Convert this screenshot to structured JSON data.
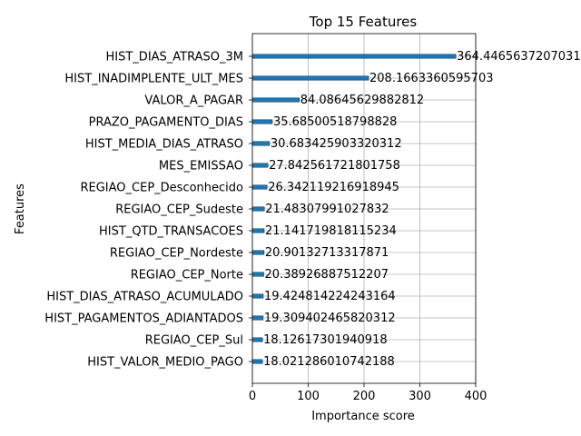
{
  "chart_data": {
    "type": "bar",
    "orientation": "horizontal",
    "title": "Top 15 Features",
    "xlabel": "Importance score",
    "ylabel": "Features",
    "xlim": [
      0,
      400
    ],
    "xticks": [
      0,
      100,
      200,
      300,
      400
    ],
    "grid": true,
    "bar_color": "#1f77b4",
    "categories": [
      "HIST_DIAS_ATRASO_3M",
      "HIST_INADIMPLENTE_ULT_MES",
      "VALOR_A_PAGAR",
      "PRAZO_PAGAMENTO_DIAS",
      "HIST_MEDIA_DIAS_ATRASO",
      "MES_EMISSAO",
      "REGIAO_CEP_Desconhecido",
      "REGIAO_CEP_Sudeste",
      "HIST_QTD_TRANSACOES",
      "REGIAO_CEP_Nordeste",
      "REGIAO_CEP_Norte",
      "HIST_DIAS_ATRASO_ACUMULADO",
      "HIST_PAGAMENTOS_ADIANTADOS",
      "REGIAO_CEP_Sul",
      "HIST_VALOR_MEDIO_PAGO"
    ],
    "values": [
      364.4465637207031,
      208.1663360595703,
      84.08645629882812,
      35.68500518798828,
      30.683425903320312,
      27.842561721801758,
      26.342119216918945,
      21.48307991027832,
      21.141719818115234,
      20.90132713317871,
      20.38926887512207,
      19.424814224243164,
      19.309402465820312,
      18.12617301940918,
      18.021286010742188
    ],
    "value_labels": [
      "364.4465637207031",
      "208.1663360595703",
      "84.08645629882812",
      "35.68500518798828",
      "30.683425903320312",
      "27.842561721801758",
      "26.342119216918945",
      "21.48307991027832",
      "21.141719818115234",
      "20.90132713317871",
      "20.38926887512207",
      "19.424814224243164",
      "19.309402465820312",
      "18.12617301940918",
      "18.021286010742188"
    ]
  }
}
